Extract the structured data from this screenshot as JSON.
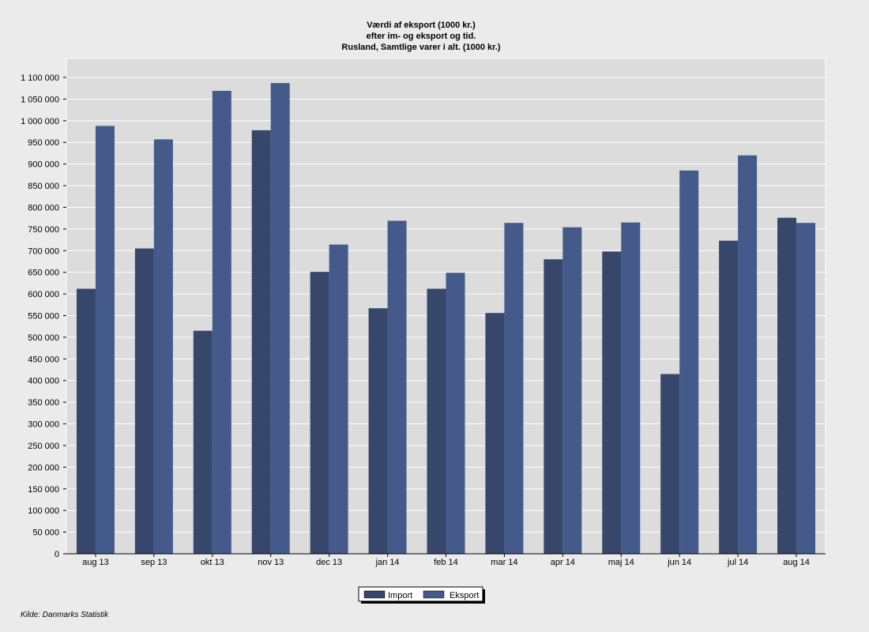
{
  "chart_data": {
    "type": "bar",
    "title": "Værdi af eksport (1000 kr.)",
    "subtitle_lines": [
      "efter im- og eksport og tid.",
      "Rusland, Samtlige varer i alt. (1000 kr.)"
    ],
    "categories": [
      "aug 13",
      "sep 13",
      "okt 13",
      "nov 13",
      "dec 13",
      "jan 14",
      "feb 14",
      "mar 14",
      "apr 14",
      "maj 14",
      "jun 14",
      "jul 14",
      "aug 14"
    ],
    "series": [
      {
        "name": "Import",
        "color": "#36476b",
        "values": [
          612000,
          705000,
          515000,
          978000,
          651000,
          567000,
          612000,
          556000,
          680000,
          698000,
          415000,
          723000,
          776000
        ]
      },
      {
        "name": "Eksport",
        "color": "#435a8a",
        "values": [
          988000,
          957000,
          1069000,
          1087000,
          714000,
          769000,
          649000,
          764000,
          754000,
          765000,
          885000,
          920000,
          764000
        ]
      }
    ],
    "ylim": [
      0,
      1100000
    ],
    "ytick_step": 50000,
    "ytick_labels": [
      "0",
      "50 000",
      "100 000",
      "150 000",
      "200 000",
      "250 000",
      "300 000",
      "350 000",
      "400 000",
      "450 000",
      "500 000",
      "550 000",
      "600 000",
      "650 000",
      "700 000",
      "750 000",
      "800 000",
      "850 000",
      "900 000",
      "950 000",
      "1 000 000",
      "1 050 000",
      "1 100 000"
    ],
    "grid": true,
    "legend_position": "bottom-center",
    "plot_background": "#dcdcdc"
  },
  "source": "Kilde: Danmarks Statistik"
}
